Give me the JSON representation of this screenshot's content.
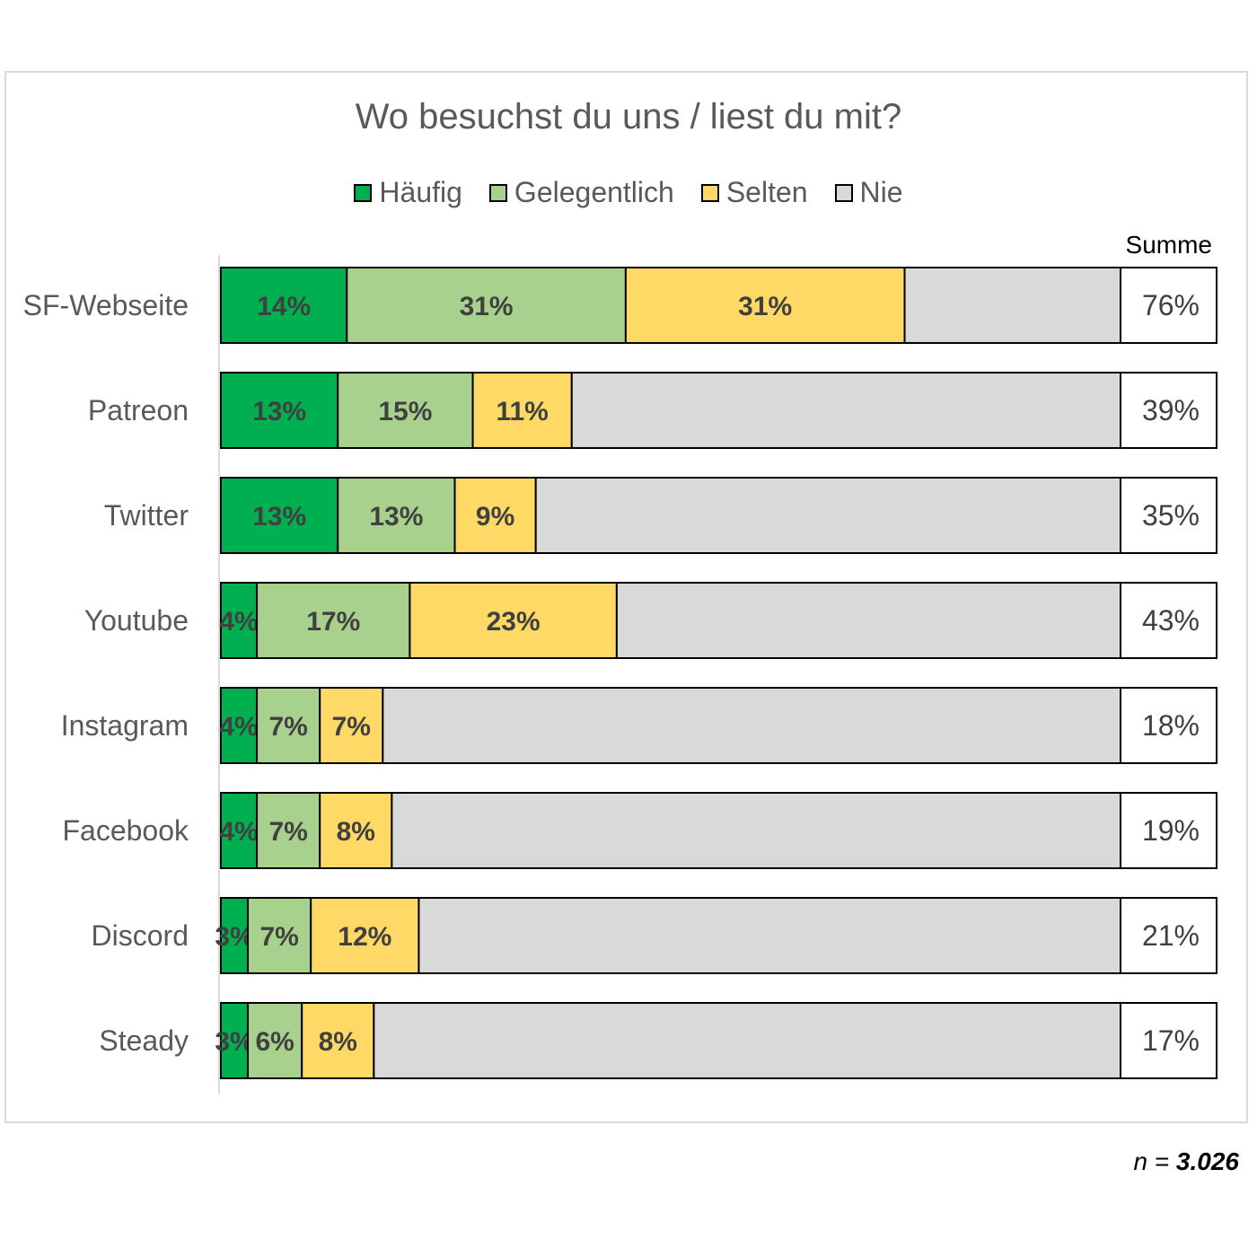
{
  "chart_data": {
    "type": "bar",
    "orientation": "horizontal",
    "stacked": true,
    "title": "Wo besuchst du uns / liest du mit?",
    "categories": [
      "SF-Webseite",
      "Patreon",
      "Twitter",
      "Youtube",
      "Instagram",
      "Facebook",
      "Discord",
      "Steady"
    ],
    "series": [
      {
        "name": "Häufig",
        "color": "#00b050",
        "values": [
          14,
          13,
          13,
          4,
          4,
          4,
          3,
          3
        ],
        "labels": [
          "14%",
          "13%",
          "13%",
          "4%",
          "4%",
          "4%",
          "3%",
          "3%"
        ]
      },
      {
        "name": "Gelegentlich",
        "color": "#a9d18e",
        "values": [
          31,
          15,
          13,
          17,
          7,
          7,
          7,
          6
        ],
        "labels": [
          "31%",
          "15%",
          "13%",
          "17%",
          "7%",
          "7%",
          "7%",
          "6%"
        ]
      },
      {
        "name": "Selten",
        "color": "#ffd966",
        "values": [
          31,
          11,
          9,
          23,
          7,
          8,
          12,
          8
        ],
        "labels": [
          "31%",
          "11%",
          "9%",
          "23%",
          "7%",
          "8%",
          "12%",
          "8%"
        ]
      },
      {
        "name": "Nie",
        "color": "#d9d9d9",
        "values": [
          24,
          61,
          65,
          57,
          82,
          81,
          79,
          83
        ],
        "labels": [
          "",
          "",
          "",
          "",
          "",
          "",
          "",
          ""
        ]
      }
    ],
    "summe_header": "Summe",
    "summe": [
      "76%",
      "39%",
      "35%",
      "43%",
      "18%",
      "19%",
      "21%",
      "17%"
    ],
    "xlim": [
      0,
      100
    ],
    "grid": false,
    "legend_position": "top"
  },
  "footer": {
    "n_label": "n =",
    "n_value": "3.026"
  }
}
